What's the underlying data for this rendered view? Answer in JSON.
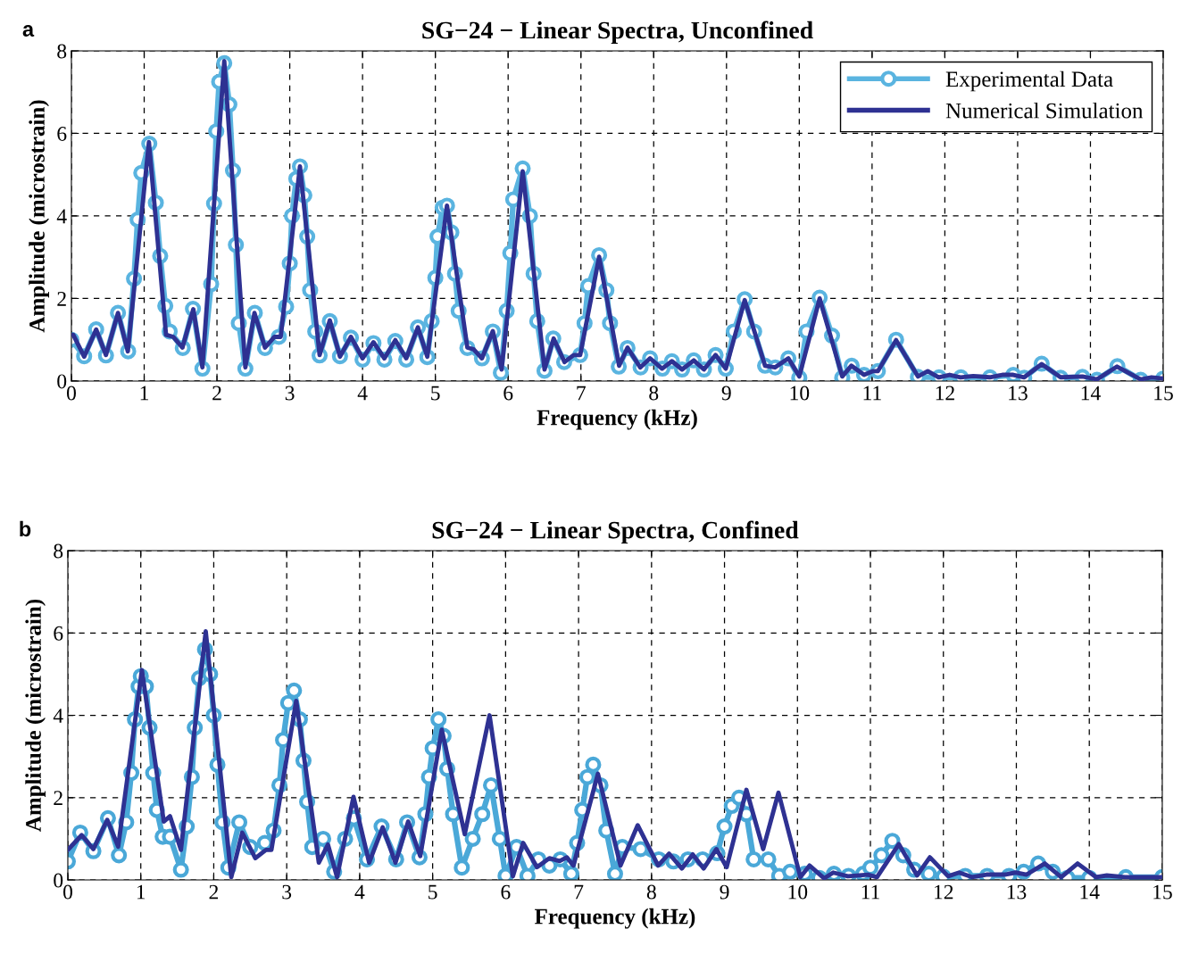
{
  "chart_data": [
    {
      "type": "line",
      "title": "SG−24 − Linear Spectra, Unconfined",
      "xlabel": "Frequency (kHz)",
      "ylabel": "Amplitude (microstrain)",
      "annotations": [
        "a"
      ],
      "xlim": [
        0,
        15
      ],
      "ylim": [
        0,
        8
      ],
      "xticks": [
        0,
        1,
        2,
        3,
        4,
        5,
        6,
        7,
        8,
        9,
        10,
        11,
        12,
        13,
        14,
        15
      ],
      "yticks": [
        0,
        2,
        4,
        6,
        8
      ],
      "grid": true,
      "legend": "top right",
      "line_style": "solid",
      "series": [
        {
          "name": "Experimental Data",
          "color": "#5ab4e0",
          "marker": "circle",
          "x": [
            0.0,
            0.175,
            0.34,
            0.475,
            0.64,
            0.78,
            0.86,
            0.91,
            0.96,
            1.07,
            1.16,
            1.22,
            1.29,
            1.35,
            1.53,
            1.67,
            1.8,
            1.92,
            1.96,
            1.99,
            2.03,
            2.1,
            2.17,
            2.22,
            2.26,
            2.3,
            2.39,
            2.52,
            2.66,
            2.85,
            2.95,
            3.0,
            3.03,
            3.09,
            3.14,
            3.2,
            3.24,
            3.28,
            3.35,
            3.41,
            3.55,
            3.69,
            3.84,
            4.0,
            4.15,
            4.3,
            4.45,
            4.6,
            4.76,
            4.89,
            4.95,
            5.0,
            5.03,
            5.1,
            5.16,
            5.22,
            5.27,
            5.32,
            5.44,
            5.64,
            5.79,
            5.9,
            5.98,
            6.03,
            6.07,
            6.2,
            6.3,
            6.35,
            6.4,
            6.5,
            6.62,
            6.77,
            6.99,
            7.05,
            7.1,
            7.25,
            7.35,
            7.4,
            7.52,
            7.64,
            7.82,
            7.95,
            8.12,
            8.25,
            8.39,
            8.55,
            8.69,
            8.85,
            8.99,
            9.1,
            9.25,
            9.38,
            9.53,
            9.67,
            9.85,
            10.0,
            10.1,
            10.28,
            10.45,
            10.59,
            10.72,
            10.89,
            11.08,
            11.33,
            11.63,
            11.92,
            12.22,
            12.62,
            12.94,
            13.09,
            13.33,
            13.59,
            13.89,
            14.09,
            14.37,
            14.69,
            15.0
          ],
          "values": [
            1.0,
            0.6,
            1.25,
            0.62,
            1.65,
            0.72,
            2.48,
            3.91,
            5.04,
            5.75,
            4.32,
            3.03,
            1.82,
            1.2,
            0.8,
            1.75,
            0.3,
            2.35,
            4.3,
            6.05,
            7.25,
            7.7,
            6.7,
            5.1,
            3.3,
            1.4,
            0.3,
            1.65,
            0.8,
            1.07,
            1.8,
            2.85,
            4.0,
            4.9,
            5.2,
            4.5,
            3.5,
            2.2,
            1.2,
            0.62,
            1.45,
            0.6,
            1.05,
            0.52,
            0.92,
            0.52,
            0.97,
            0.52,
            1.3,
            0.58,
            1.45,
            2.5,
            3.5,
            4.2,
            4.25,
            3.6,
            2.6,
            1.7,
            0.8,
            0.55,
            1.2,
            0.2,
            1.7,
            3.1,
            4.4,
            5.15,
            4.0,
            2.6,
            1.45,
            0.25,
            1.03,
            0.46,
            0.63,
            1.4,
            2.3,
            3.05,
            2.2,
            1.4,
            0.35,
            0.8,
            0.33,
            0.55,
            0.3,
            0.48,
            0.28,
            0.5,
            0.28,
            0.63,
            0.3,
            1.2,
            1.98,
            1.2,
            0.37,
            0.33,
            0.55,
            0.08,
            1.2,
            2.02,
            1.1,
            0.08,
            0.37,
            0.15,
            0.24,
            1.0,
            0.1,
            0.09,
            0.09,
            0.09,
            0.15,
            0.08,
            0.42,
            0.08,
            0.1,
            0.03,
            0.36,
            0.03,
            0.06
          ]
        },
        {
          "name": "Numerical Simulation",
          "color": "#2e3192",
          "marker": "none",
          "x": [
            0.025,
            0.175,
            0.34,
            0.475,
            0.64,
            0.775,
            1.065,
            1.3,
            1.4,
            1.525,
            1.675,
            1.8,
            2.1,
            2.39,
            2.515,
            2.66,
            2.79,
            2.875,
            3.14,
            3.41,
            3.55,
            3.69,
            3.84,
            4.0,
            4.15,
            4.3,
            4.45,
            4.6,
            4.76,
            4.89,
            5.16,
            5.44,
            5.525,
            5.64,
            5.79,
            5.91,
            6.2,
            6.5,
            6.625,
            6.775,
            6.9,
            6.99,
            7.25,
            7.525,
            7.64,
            7.815,
            7.95,
            8.115,
            8.25,
            8.39,
            8.55,
            8.69,
            8.85,
            8.99,
            9.25,
            9.53,
            9.665,
            9.85,
            10.0,
            10.28,
            10.59,
            10.715,
            10.89,
            11.015,
            11.08,
            11.33,
            11.63,
            11.765,
            11.915,
            12.065,
            12.215,
            12.39,
            12.615,
            12.79,
            12.94,
            13.09,
            13.33,
            13.59,
            13.89,
            14.09,
            14.365,
            14.69,
            14.84,
            15.0
          ],
          "values": [
            1.12,
            0.59,
            1.25,
            0.63,
            1.65,
            0.72,
            5.79,
            1.12,
            1.07,
            0.81,
            1.74,
            0.33,
            7.75,
            0.33,
            1.65,
            0.81,
            1.07,
            1.07,
            5.2,
            0.63,
            1.47,
            0.59,
            1.07,
            0.55,
            0.94,
            0.55,
            0.99,
            0.55,
            1.3,
            0.59,
            4.25,
            0.81,
            0.77,
            0.55,
            1.21,
            0.28,
            5.08,
            0.28,
            1.03,
            0.46,
            0.63,
            0.63,
            3.01,
            0.37,
            0.81,
            0.33,
            0.55,
            0.3,
            0.48,
            0.28,
            0.5,
            0.28,
            0.63,
            0.3,
            1.96,
            0.37,
            0.33,
            0.55,
            0.11,
            2.0,
            0.11,
            0.37,
            0.15,
            0.24,
            0.24,
            0.99,
            0.11,
            0.24,
            0.09,
            0.15,
            0.09,
            0.12,
            0.09,
            0.15,
            0.15,
            0.09,
            0.41,
            0.09,
            0.11,
            0.04,
            0.35,
            0.04,
            0.09,
            0.06
          ]
        }
      ]
    },
    {
      "type": "line",
      "title": "SG−24 − Linear Spectra, Confined",
      "xlabel": "Frequency (kHz)",
      "ylabel": "Amplitude (microstrain)",
      "annotations": [
        "b"
      ],
      "xlim": [
        0,
        15
      ],
      "ylim": [
        0,
        8
      ],
      "xticks": [
        0,
        1,
        2,
        3,
        4,
        5,
        6,
        7,
        8,
        9,
        10,
        11,
        12,
        13,
        14,
        15
      ],
      "yticks": [
        0,
        2,
        4,
        6,
        8
      ],
      "grid": true,
      "line_style": "solid",
      "series": [
        {
          "color": "#4aa8d8",
          "marker": "circle",
          "x": [
            0,
            0.17,
            0.35,
            0.55,
            0.7,
            0.8,
            0.87,
            0.92,
            0.97,
            1.0,
            1.07,
            1.12,
            1.17,
            1.22,
            1.3,
            1.4,
            1.55,
            1.63,
            1.7,
            1.74,
            1.8,
            1.88,
            1.95,
            2.0,
            2.05,
            2.12,
            2.2,
            2.35,
            2.5,
            2.7,
            2.82,
            2.9,
            2.95,
            3.02,
            3.1,
            3.18,
            3.23,
            3.28,
            3.35,
            3.5,
            3.65,
            3.8,
            3.92,
            4.1,
            4.3,
            4.5,
            4.65,
            4.82,
            4.9,
            4.95,
            5.0,
            5.08,
            5.15,
            5.2,
            5.28,
            5.4,
            5.55,
            5.68,
            5.8,
            5.92,
            6.0,
            6.15,
            6.3,
            6.45,
            6.6,
            6.75,
            6.9,
            6.98,
            7.05,
            7.12,
            7.2,
            7.3,
            7.38,
            7.5,
            7.6,
            7.85,
            8.1,
            8.3,
            8.5,
            8.7,
            8.9,
            9.0,
            9.1,
            9.2,
            9.3,
            9.4,
            9.6,
            9.75,
            9.9,
            10.1,
            10.3,
            10.5,
            10.7,
            10.9,
            11.0,
            11.15,
            11.3,
            11.45,
            11.6,
            11.8,
            12.0,
            12.3,
            12.6,
            12.9,
            13.1,
            13.3,
            13.5,
            13.7,
            14.0,
            14.5,
            15.0
          ],
          "values": [
            0.45,
            1.15,
            0.7,
            1.5,
            0.6,
            1.4,
            2.6,
            3.9,
            4.7,
            4.95,
            4.7,
            3.7,
            2.6,
            1.7,
            1.05,
            1.05,
            0.25,
            1.3,
            2.5,
            3.7,
            4.9,
            5.6,
            5.0,
            4.0,
            2.8,
            1.4,
            0.3,
            1.4,
            0.8,
            0.9,
            1.2,
            2.3,
            3.4,
            4.3,
            4.6,
            3.9,
            2.9,
            1.9,
            0.8,
            1.0,
            0.2,
            1.0,
            1.5,
            0.5,
            1.3,
            0.5,
            1.4,
            0.55,
            1.6,
            2.5,
            3.2,
            3.9,
            3.5,
            2.7,
            1.6,
            0.3,
            1.0,
            1.6,
            2.3,
            1.0,
            0.1,
            0.8,
            0.1,
            0.5,
            0.35,
            0.5,
            0.15,
            0.9,
            1.7,
            2.5,
            2.8,
            2.3,
            1.2,
            0.15,
            0.8,
            0.75,
            0.5,
            0.45,
            0.5,
            0.5,
            0.65,
            1.3,
            1.8,
            2.0,
            1.6,
            0.5,
            0.5,
            0.1,
            0.2,
            0.15,
            0.05,
            0.15,
            0.1,
            0.15,
            0.3,
            0.6,
            0.95,
            0.6,
            0.25,
            0.15,
            0.08,
            0.1,
            0.1,
            0.1,
            0.2,
            0.4,
            0.2,
            0.05,
            0.05,
            0.07,
            0.07
          ]
        },
        {
          "color": "#2e3192",
          "marker": "none",
          "x": [
            0,
            0.19,
            0.35,
            0.54,
            0.69,
            1.015,
            1.315,
            1.4,
            1.55,
            1.89,
            2.24,
            2.39,
            2.57,
            2.715,
            2.79,
            3.13,
            3.44,
            3.565,
            3.69,
            3.915,
            4.13,
            4.315,
            4.49,
            4.665,
            4.83,
            5.125,
            5.44,
            5.78,
            6.1,
            6.24,
            6.43,
            6.6,
            6.74,
            6.84,
            6.93,
            7.265,
            7.575,
            7.81,
            8.09,
            8.24,
            8.415,
            8.565,
            8.715,
            8.89,
            9.03,
            9.3,
            9.53,
            9.74,
            10.04,
            10.165,
            10.365,
            10.49,
            10.69,
            10.965,
            11.09,
            11.39,
            11.64,
            11.815,
            12.065,
            12.215,
            12.39,
            12.59,
            12.84,
            12.99,
            13.14,
            13.39,
            13.615,
            13.84,
            14.09,
            14.24,
            14.49,
            15.0
          ],
          "values": [
            0.73,
            1.09,
            0.75,
            1.46,
            0.81,
            5.1,
            1.42,
            1.55,
            0.73,
            6.04,
            0.07,
            1.15,
            0.53,
            0.73,
            0.73,
            4.35,
            0.42,
            0.86,
            0.07,
            2.02,
            0.42,
            1.28,
            0.42,
            1.42,
            0.58,
            3.65,
            1.11,
            4.0,
            0.09,
            0.9,
            0.31,
            0.53,
            0.46,
            0.55,
            0.35,
            2.58,
            0.35,
            1.33,
            0.35,
            0.64,
            0.28,
            0.62,
            0.28,
            0.75,
            0.31,
            2.19,
            0.75,
            2.12,
            0.07,
            0.35,
            0.04,
            0.18,
            0.09,
            0.13,
            0.07,
            0.87,
            0.11,
            0.55,
            0.09,
            0.18,
            0.07,
            0.13,
            0.13,
            0.18,
            0.13,
            0.4,
            0.07,
            0.4,
            0.07,
            0.11,
            0.07,
            0.07
          ]
        }
      ]
    }
  ]
}
